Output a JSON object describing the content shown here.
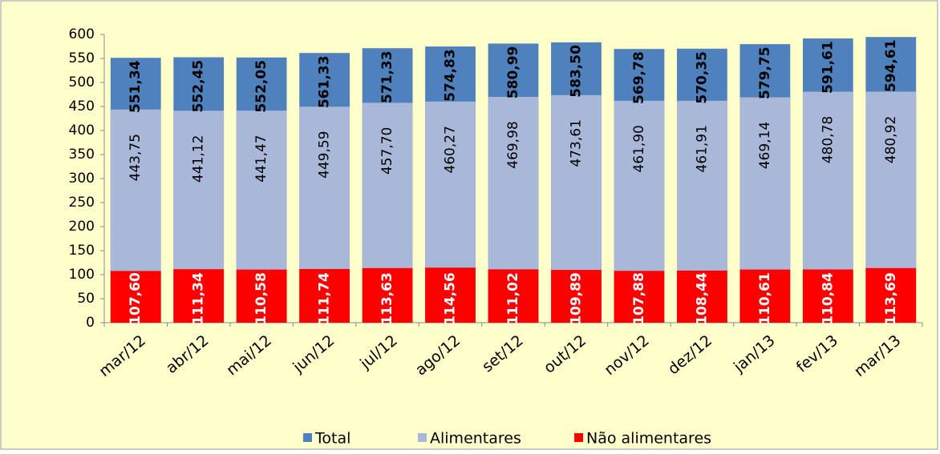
{
  "chart_data": {
    "type": "bar",
    "categories": [
      "mar/12",
      "abr/12",
      "mai/12",
      "jun/12",
      "jul/12",
      "ago/12",
      "set/12",
      "out/12",
      "nov/12",
      "dez/12",
      "jan/13",
      "fev/13",
      "mar/13"
    ],
    "series": [
      {
        "name": "Total",
        "color": "#4f81bd",
        "values": [
          551.34,
          552.45,
          552.05,
          561.33,
          571.33,
          574.83,
          580.99,
          583.5,
          569.78,
          570.35,
          579.75,
          591.61,
          594.61
        ],
        "value_labels": [
          "551,34",
          "552,45",
          "552,05",
          "561,33",
          "571,33",
          "574,83",
          "580,99",
          "583,50",
          "569,78",
          "570,35",
          "579,75",
          "591,61",
          "594,61"
        ]
      },
      {
        "name": "Alimentares",
        "color": "#a9b8d9",
        "values": [
          443.75,
          441.12,
          441.47,
          449.59,
          457.7,
          460.27,
          469.98,
          473.61,
          461.9,
          461.91,
          469.14,
          480.78,
          480.92
        ],
        "value_labels": [
          "443,75",
          "441,12",
          "441,47",
          "449,59",
          "457,70",
          "460,27",
          "469,98",
          "473,61",
          "461,90",
          "461,91",
          "469,14",
          "480,78",
          "480,92"
        ]
      },
      {
        "name": "Não alimentares",
        "color": "#ff0000",
        "values": [
          107.6,
          111.34,
          110.58,
          111.74,
          113.63,
          114.56,
          111.02,
          109.89,
          107.88,
          108.44,
          110.61,
          110.84,
          113.69
        ],
        "value_labels": [
          "107,60",
          "111,34",
          "110,58",
          "111,74",
          "113,63",
          "114,56",
          "111,02",
          "109,89",
          "107,88",
          "108,44",
          "110,61",
          "110,84",
          "113,69"
        ]
      }
    ],
    "ylim": [
      0,
      600
    ],
    "yticks": [
      0,
      50,
      100,
      150,
      200,
      250,
      300,
      350,
      400,
      450,
      500,
      550,
      600
    ],
    "legend": "bottom"
  }
}
